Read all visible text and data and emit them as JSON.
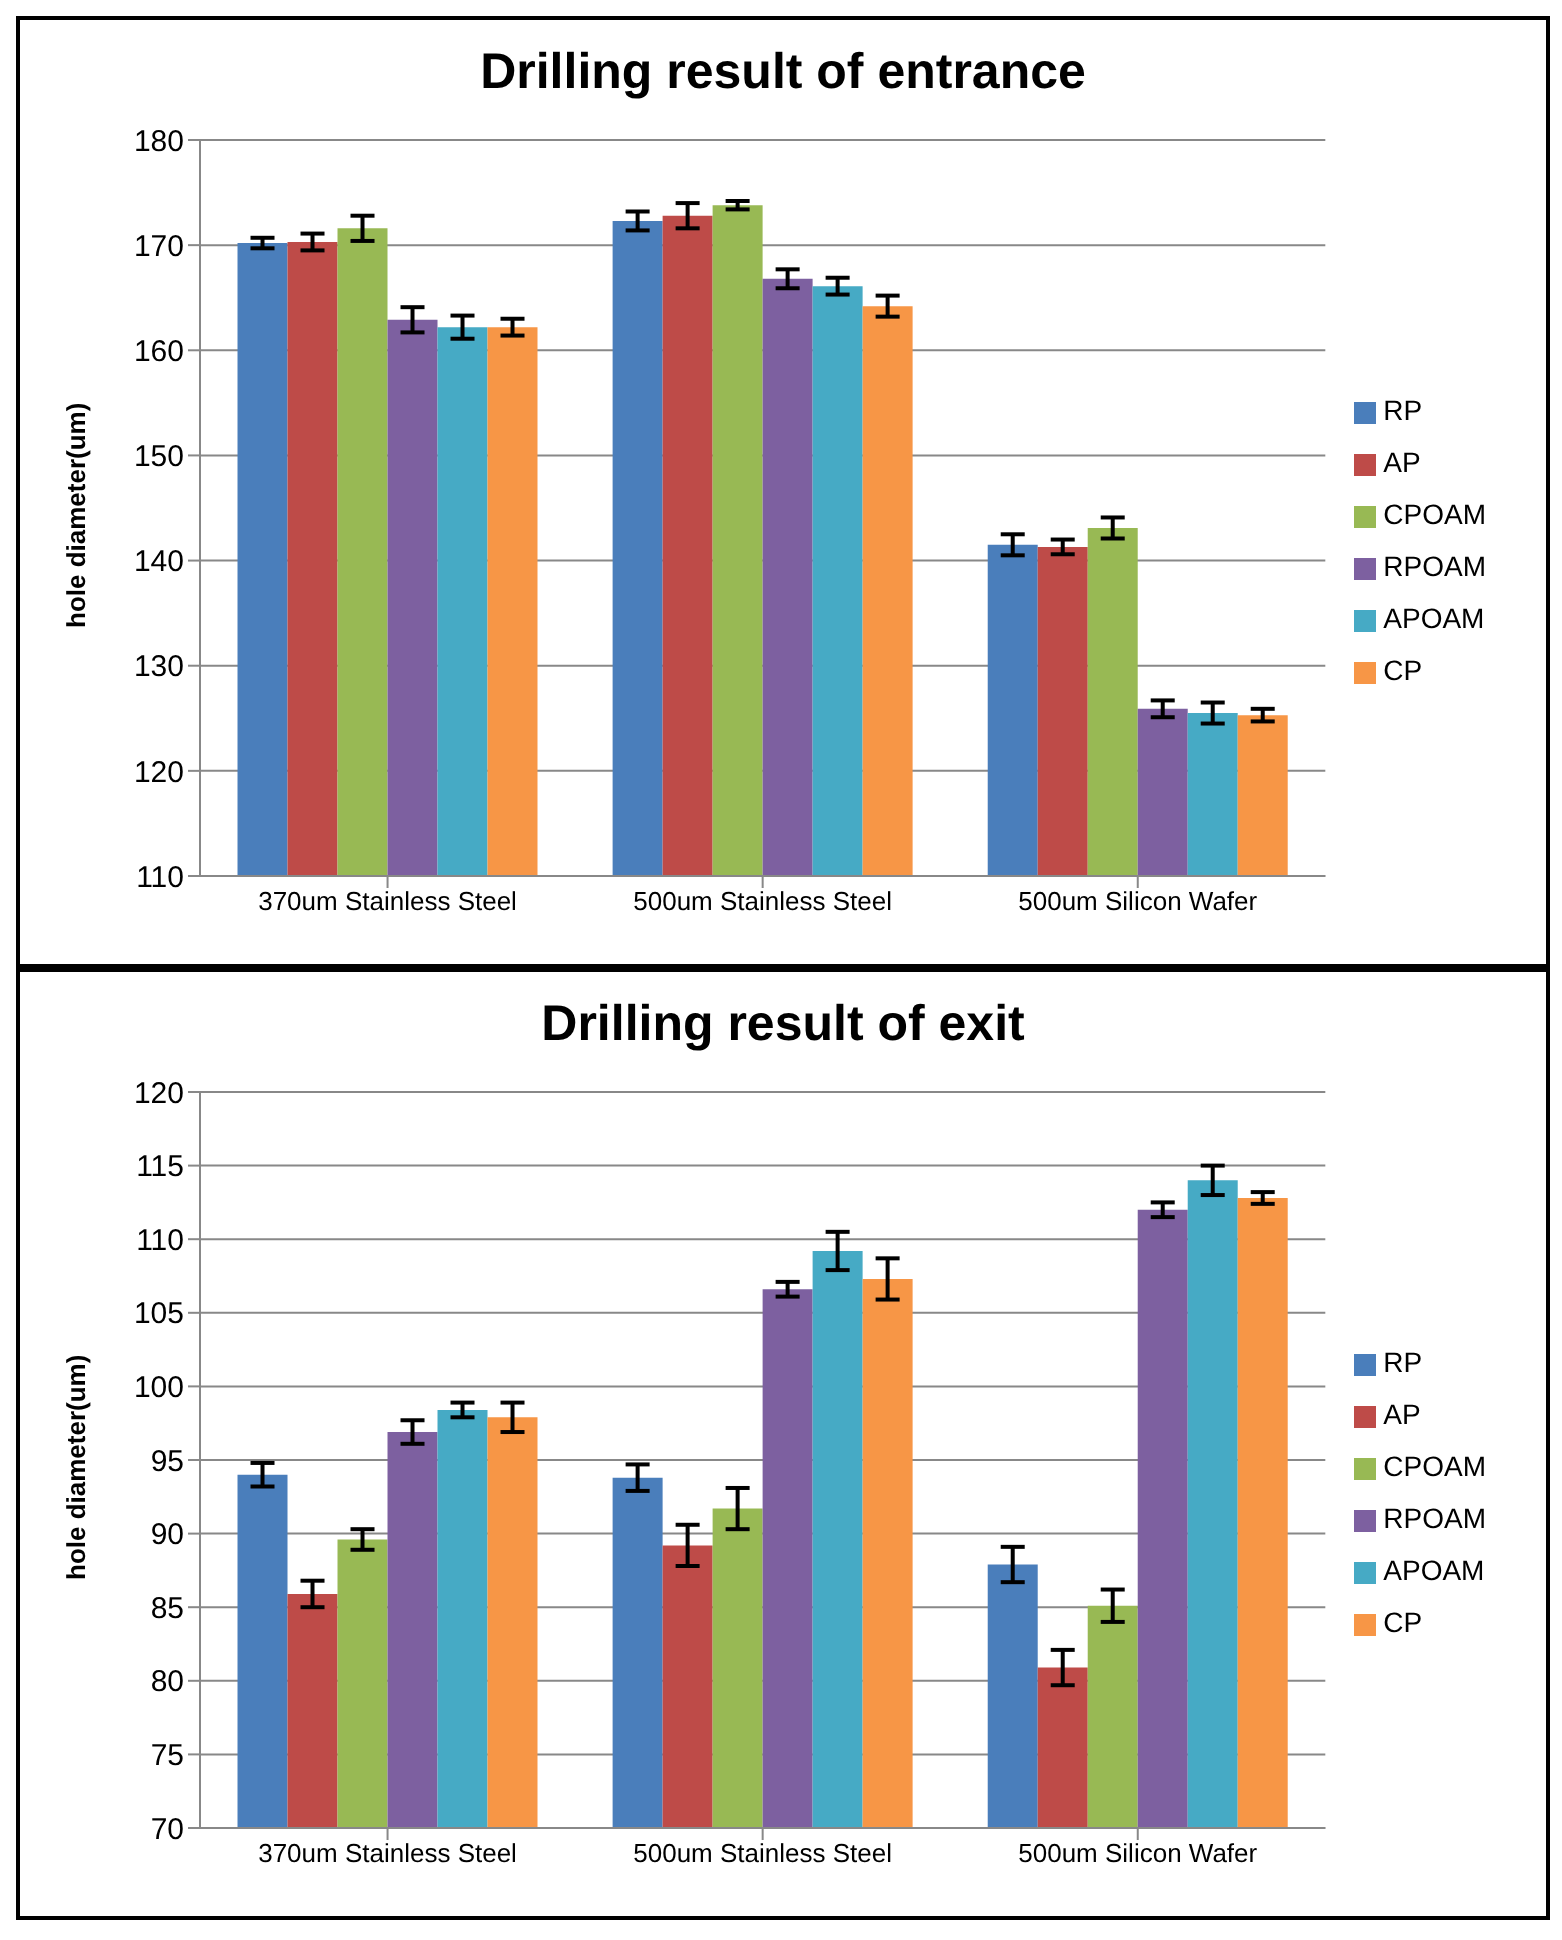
{
  "chart_data": [
    {
      "type": "bar",
      "title": "Drilling result of entrance",
      "ylabel": "hole diameter(um)",
      "categories": [
        "370um Stainless Steel",
        "500um Stainless Steel",
        "500um Silicon Wafer"
      ],
      "series": [
        {
          "name": "RP",
          "color": "#4a7ebb",
          "values": [
            170.2,
            172.3,
            141.5
          ],
          "errors": [
            0.5,
            0.9,
            1.0
          ]
        },
        {
          "name": "AP",
          "color": "#be4b48",
          "values": [
            170.3,
            172.8,
            141.3
          ],
          "errors": [
            0.8,
            1.2,
            0.7
          ]
        },
        {
          "name": "CPOAM",
          "color": "#98b954",
          "values": [
            171.6,
            173.8,
            143.1
          ],
          "errors": [
            1.2,
            0.4,
            1.0
          ]
        },
        {
          "name": "RPOAM",
          "color": "#7d60a0",
          "values": [
            162.9,
            166.8,
            125.9
          ],
          "errors": [
            1.2,
            0.9,
            0.8
          ]
        },
        {
          "name": "APOAM",
          "color": "#46aac5",
          "values": [
            162.2,
            166.1,
            125.5
          ],
          "errors": [
            1.1,
            0.8,
            1.0
          ]
        },
        {
          "name": "CP",
          "color": "#f79646",
          "values": [
            162.2,
            164.2,
            125.3
          ],
          "errors": [
            0.8,
            1.0,
            0.6
          ]
        }
      ],
      "ylim": [
        110,
        180
      ],
      "yticks": [
        110,
        120,
        130,
        140,
        150,
        160,
        170,
        180
      ],
      "grid": "y",
      "legend": "right"
    },
    {
      "type": "bar",
      "title": "Drilling result of exit",
      "ylabel": "hole diameter(um)",
      "categories": [
        "370um Stainless Steel",
        "500um Stainless Steel",
        "500um Silicon Wafer"
      ],
      "series": [
        {
          "name": "RP",
          "color": "#4a7ebb",
          "values": [
            94.0,
            93.8,
            87.9
          ],
          "errors": [
            0.8,
            0.9,
            1.2
          ]
        },
        {
          "name": "AP",
          "color": "#be4b48",
          "values": [
            85.9,
            89.2,
            80.9
          ],
          "errors": [
            0.9,
            1.4,
            1.2
          ]
        },
        {
          "name": "CPOAM",
          "color": "#98b954",
          "values": [
            89.6,
            91.7,
            85.1
          ],
          "errors": [
            0.7,
            1.4,
            1.1
          ]
        },
        {
          "name": "RPOAM",
          "color": "#7d60a0",
          "values": [
            96.9,
            106.6,
            112.0
          ],
          "errors": [
            0.8,
            0.5,
            0.5
          ]
        },
        {
          "name": "APOAM",
          "color": "#46aac5",
          "values": [
            98.4,
            109.2,
            114.0
          ],
          "errors": [
            0.5,
            1.3,
            1.0
          ]
        },
        {
          "name": "CP",
          "color": "#f79646",
          "values": [
            97.9,
            107.3,
            112.8
          ],
          "errors": [
            1.0,
            1.4,
            0.4
          ]
        }
      ],
      "ylim": [
        70,
        120
      ],
      "yticks": [
        70,
        75,
        80,
        85,
        90,
        95,
        100,
        105,
        110,
        115,
        120
      ],
      "grid": "y",
      "legend": "right"
    }
  ]
}
